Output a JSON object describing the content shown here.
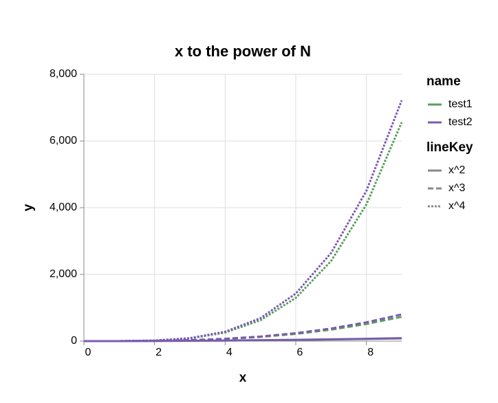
{
  "chart_data": {
    "type": "line",
    "title": "x to the power of N",
    "x_label": "x",
    "y_label": "y",
    "x": [
      0,
      1,
      2,
      3,
      4,
      5,
      6,
      7,
      8,
      9
    ],
    "xlim": [
      0,
      9
    ],
    "xticks": [
      0,
      2,
      4,
      6,
      8
    ],
    "ylim": [
      0,
      8000
    ],
    "yticks": [
      0,
      {
        "value": 2000,
        "label": "2,000"
      },
      {
        "value": 4000,
        "label": "4,000"
      },
      {
        "value": 6000,
        "label": "6,000"
      },
      {
        "value": 8000,
        "label": "8,000"
      }
    ],
    "grid": true,
    "series": [
      {
        "name": "test1",
        "lineKey": "x^2",
        "color": "#5a9e5f",
        "dash": "solid",
        "values": [
          0,
          1,
          4,
          9,
          16,
          25,
          36,
          49,
          64,
          81
        ]
      },
      {
        "name": "test1",
        "lineKey": "x^3",
        "color": "#5a9e5f",
        "dash": "dashed",
        "values": [
          0,
          1,
          8,
          27,
          64,
          125,
          216,
          343,
          512,
          729
        ]
      },
      {
        "name": "test1",
        "lineKey": "x^4",
        "color": "#5a9e5f",
        "dash": "dotted",
        "values": [
          0,
          1,
          16,
          81,
          256,
          625,
          1296,
          2401,
          4096,
          6561
        ]
      },
      {
        "name": "test2",
        "lineKey": "x^2",
        "color": "#7a5bb0",
        "dash": "solid",
        "values": [
          0,
          1.1,
          4.4,
          9.9,
          17.6,
          27.5,
          39.6,
          53.9,
          70.4,
          89.1
        ]
      },
      {
        "name": "test2",
        "lineKey": "x^3",
        "color": "#7a5bb0",
        "dash": "dashed",
        "values": [
          0,
          1.1,
          8.8,
          29.7,
          70.4,
          137.5,
          237.6,
          377.3,
          563.2,
          801.9
        ]
      },
      {
        "name": "test2",
        "lineKey": "x^4",
        "color": "#7a5bb0",
        "dash": "dotted",
        "values": [
          0,
          1.1,
          17.6,
          89.1,
          281.6,
          687.5,
          1425.6,
          2641.1,
          4505.6,
          7217.1
        ]
      }
    ],
    "color_legend": {
      "title": "name",
      "entries": [
        {
          "label": "test1",
          "color": "#5a9e5f"
        },
        {
          "label": "test2",
          "color": "#7a5bb0"
        }
      ]
    },
    "dash_legend": {
      "title": "lineKey",
      "entries": [
        {
          "label": "x^2",
          "dash": "solid"
        },
        {
          "label": "x^3",
          "dash": "dashed"
        },
        {
          "label": "x^4",
          "dash": "dotted"
        }
      ]
    }
  }
}
